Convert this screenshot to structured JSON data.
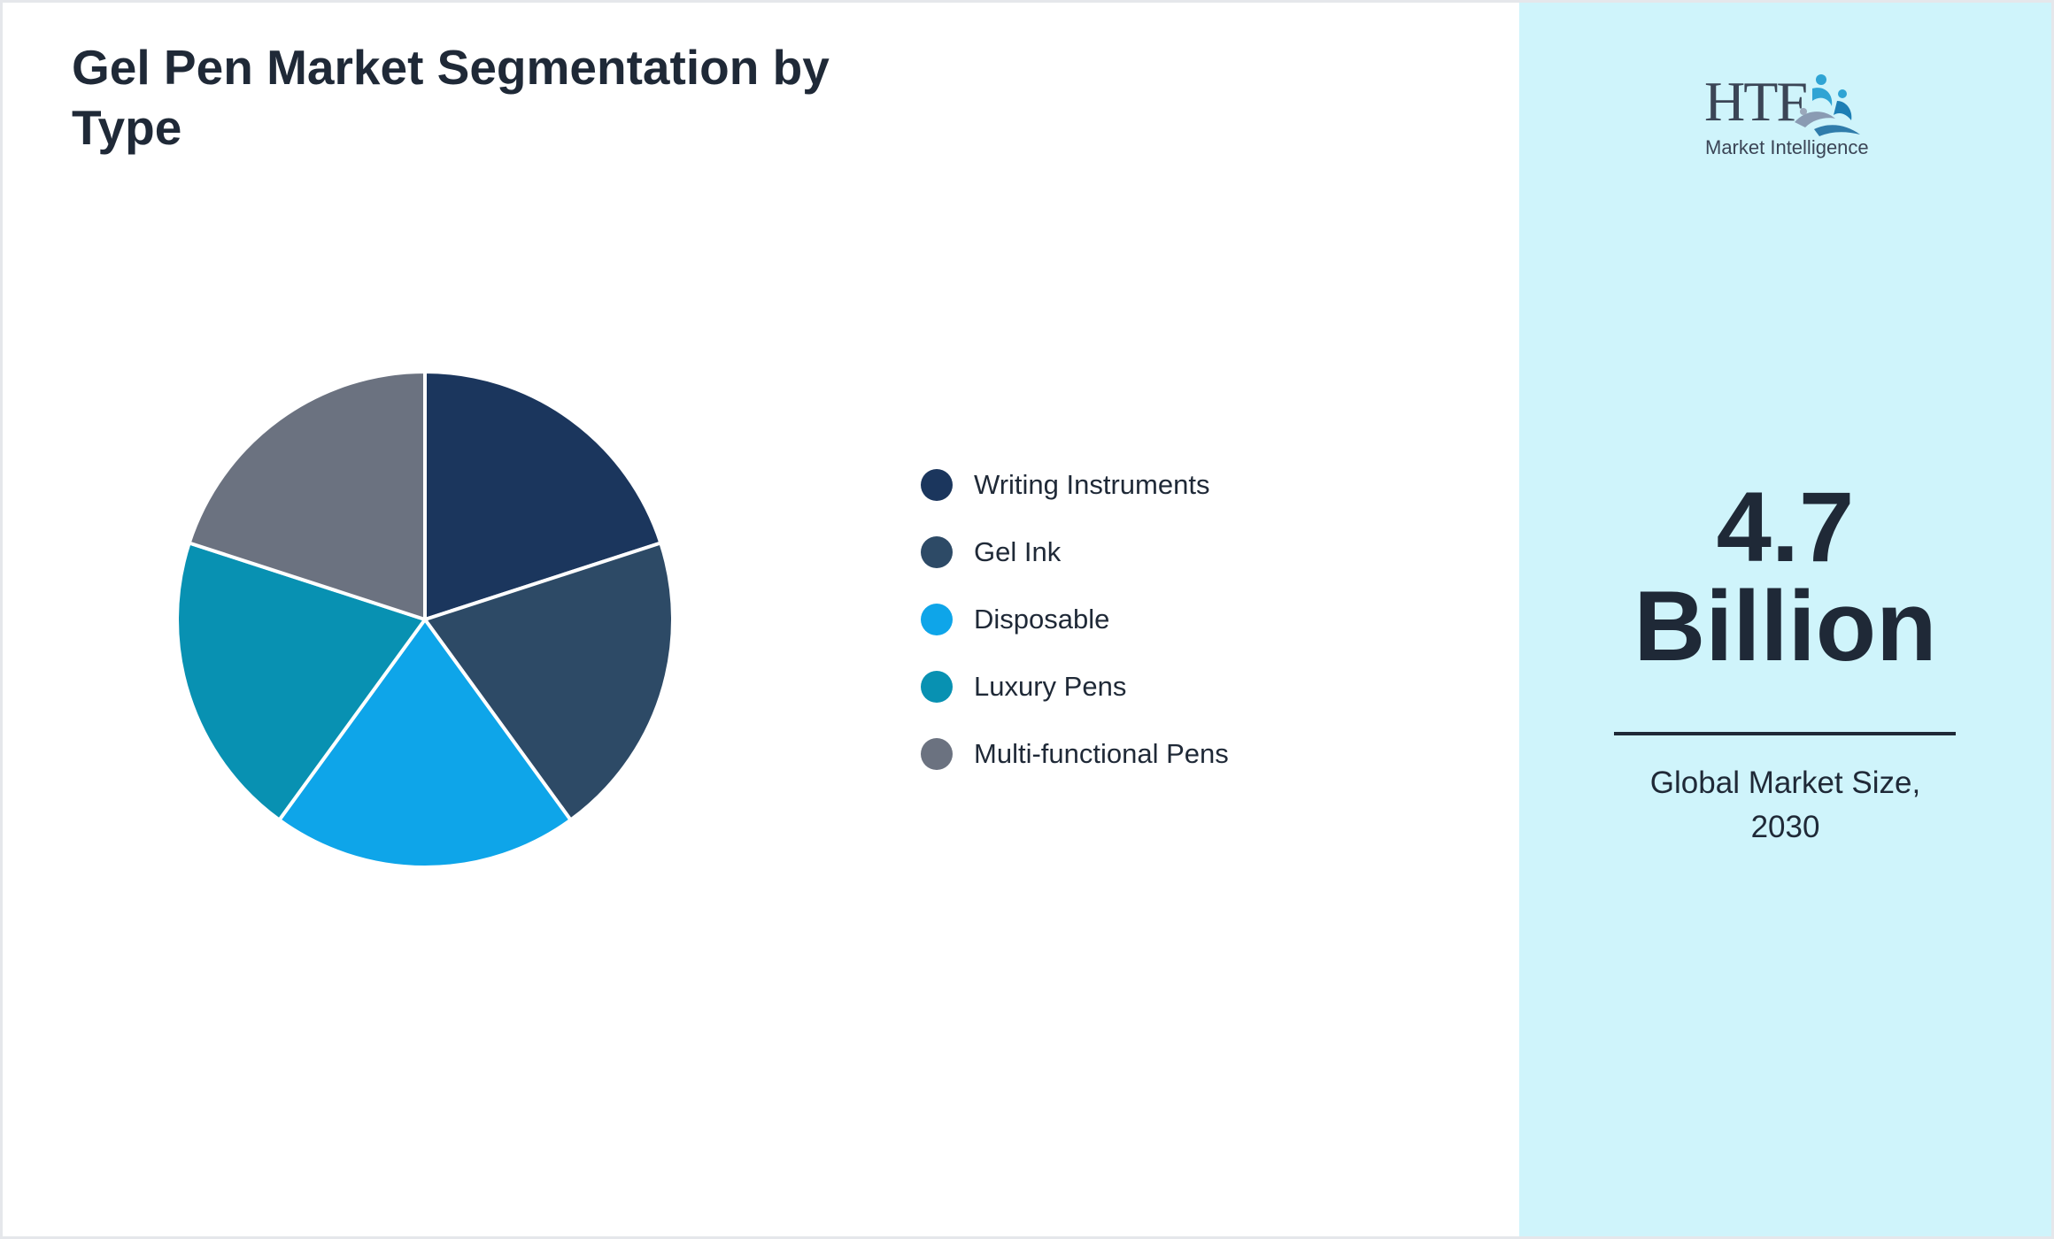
{
  "chart_data": {
    "type": "pie",
    "title": "Gel Pen Market Segmentation by Type",
    "categories": [
      "Writing Instruments",
      "Gel Ink",
      "Disposable",
      "Luxury Pens",
      "Multi-functional Pens"
    ],
    "values": [
      20,
      20,
      20,
      20,
      20
    ],
    "colors": [
      "#1b365d",
      "#2d4a66",
      "#0ea5e9",
      "#0891b2",
      "#6b7280"
    ],
    "legend_position": "right",
    "slice_border_color": "#ffffff"
  },
  "logo": {
    "text": "HTF",
    "subtitle": "Market Intelligence"
  },
  "stat": {
    "value_line1": "4.7",
    "value_line2": "Billion",
    "caption_line1": "Global Market Size,",
    "caption_line2": "2030"
  },
  "colors": {
    "side_panel_bg": "#cff4fb",
    "text_dark": "#1f2937"
  }
}
